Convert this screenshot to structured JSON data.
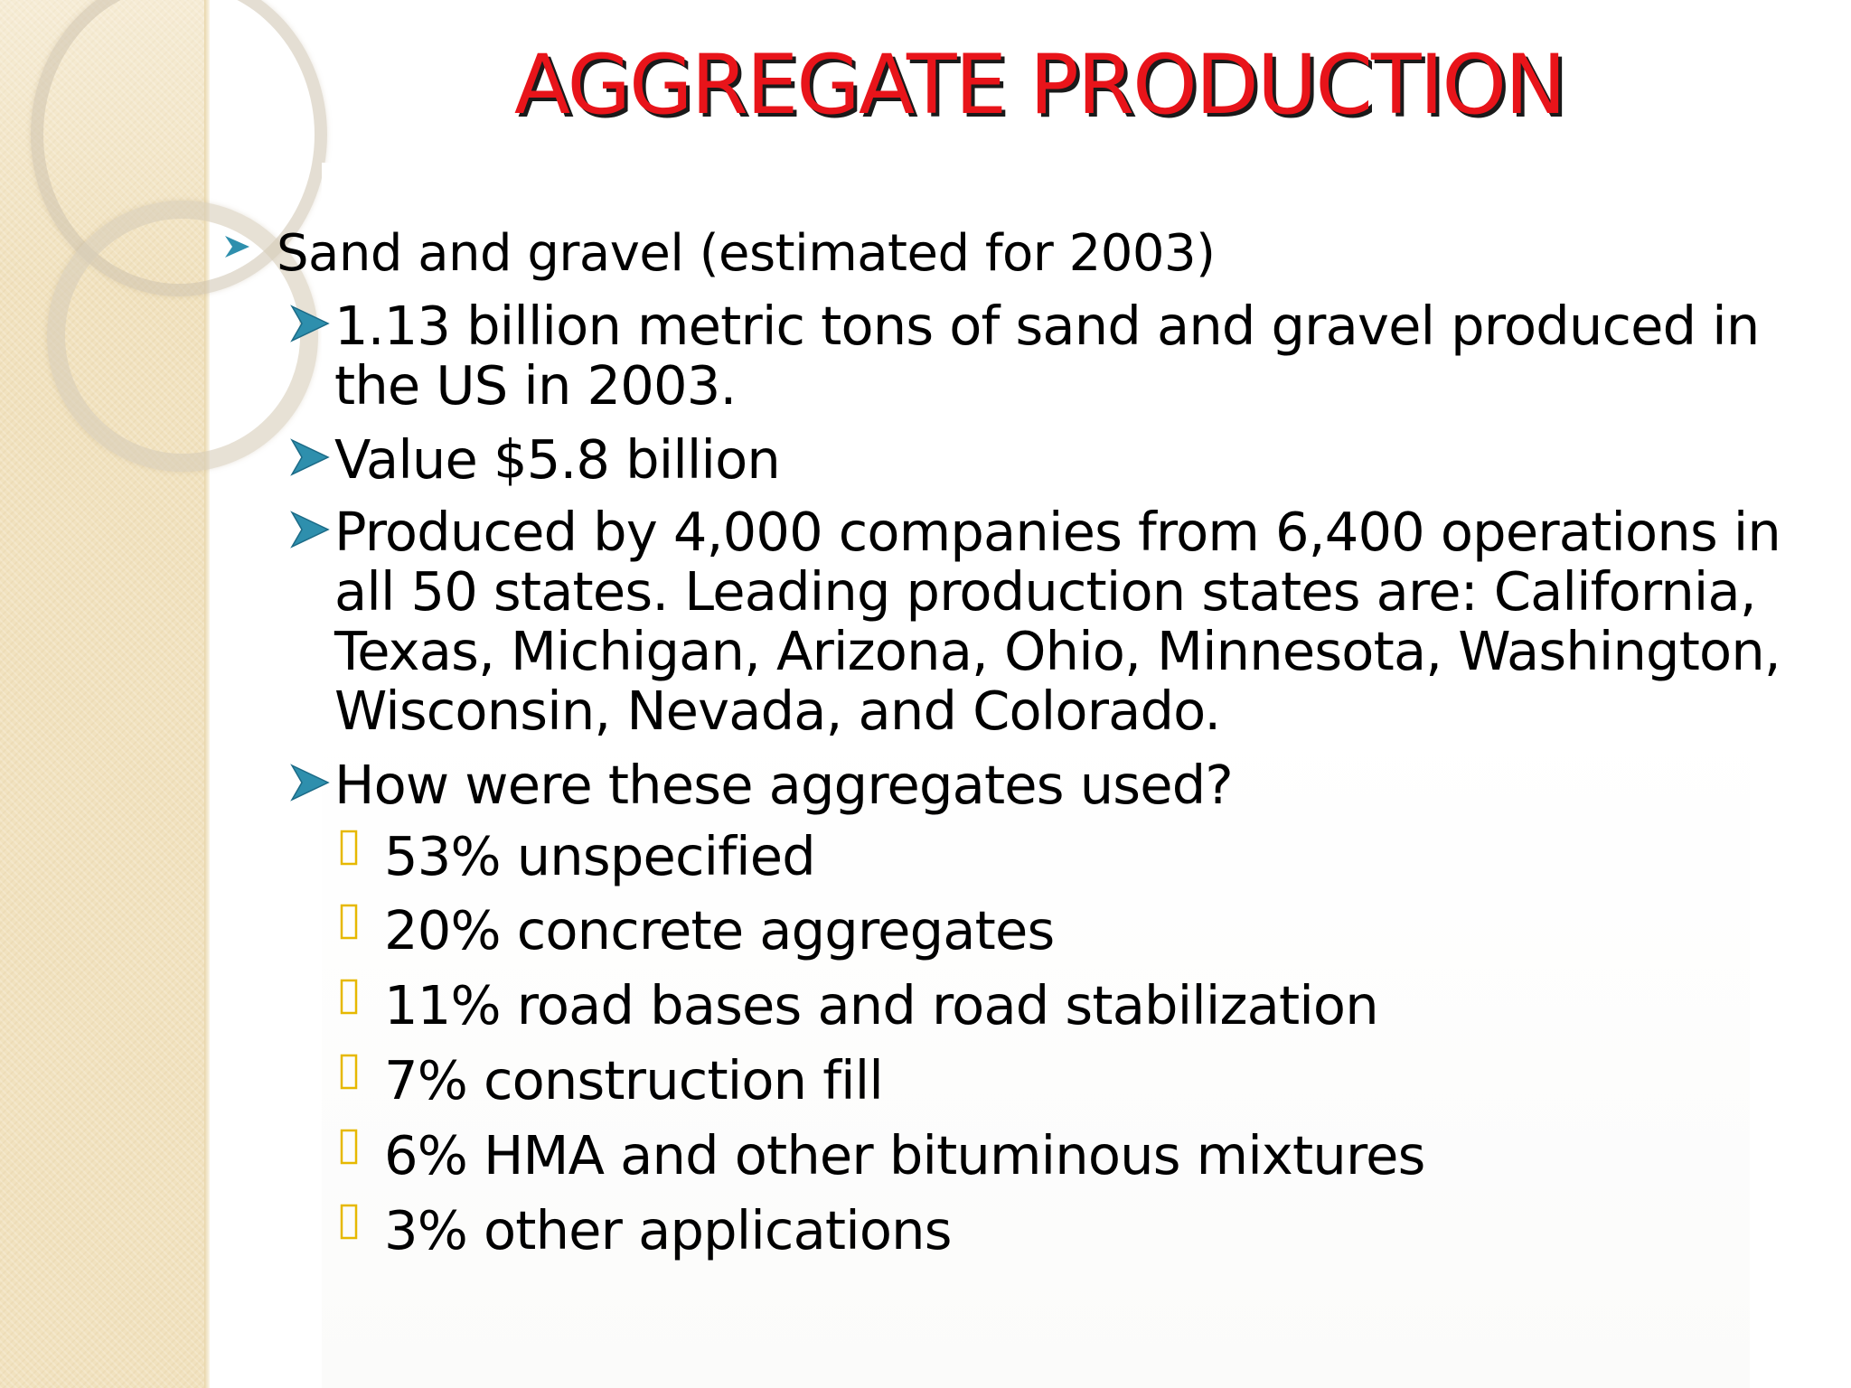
{
  "slide": {
    "title": "AGGREGATE PRODUCTION",
    "colors": {
      "title": "#e8141a",
      "title_shadow": "#1a1a1a",
      "bullet_arrow": "#2e8fad",
      "sub_bullet_box": "#e6b800",
      "side_strip": "#f1e2bf"
    },
    "level1": {
      "marker_icon": "arrow-right-icon",
      "text": "Sand and gravel (estimated for 2003)"
    },
    "level2": [
      {
        "marker_icon": "arrow-right-icon",
        "lines": [
          "1.13 billion metric tons of sand and gravel produced in",
          "the US in 2003."
        ]
      },
      {
        "marker_icon": "arrow-right-icon",
        "lines": [
          "Value $5.8 billion"
        ]
      },
      {
        "marker_icon": "arrow-right-icon",
        "lines": [
          "Produced by 4,000 companies from 6,400 operations in",
          "all 50 states. Leading production states are: California,",
          "Texas, Michigan, Arizona, Ohio, Minnesota, Washington,",
          "Wisconsin, Nevada, and Colorado."
        ]
      },
      {
        "marker_icon": "arrow-right-icon",
        "lines": [
          "How were these aggregates used?"
        ]
      }
    ],
    "level3": [
      {
        "marker_icon": "box-glyph-icon",
        "text": "53% unspecified"
      },
      {
        "marker_icon": "box-glyph-icon",
        "text": "20% concrete aggregates"
      },
      {
        "marker_icon": "box-glyph-icon",
        "text": "11% road bases and road stabilization"
      },
      {
        "marker_icon": "box-glyph-icon",
        "text": "7% construction fill"
      },
      {
        "marker_icon": "box-glyph-icon",
        "text": "6% HMA and other bituminous mixtures"
      },
      {
        "marker_icon": "box-glyph-icon",
        "text": "3% other applications"
      }
    ]
  }
}
